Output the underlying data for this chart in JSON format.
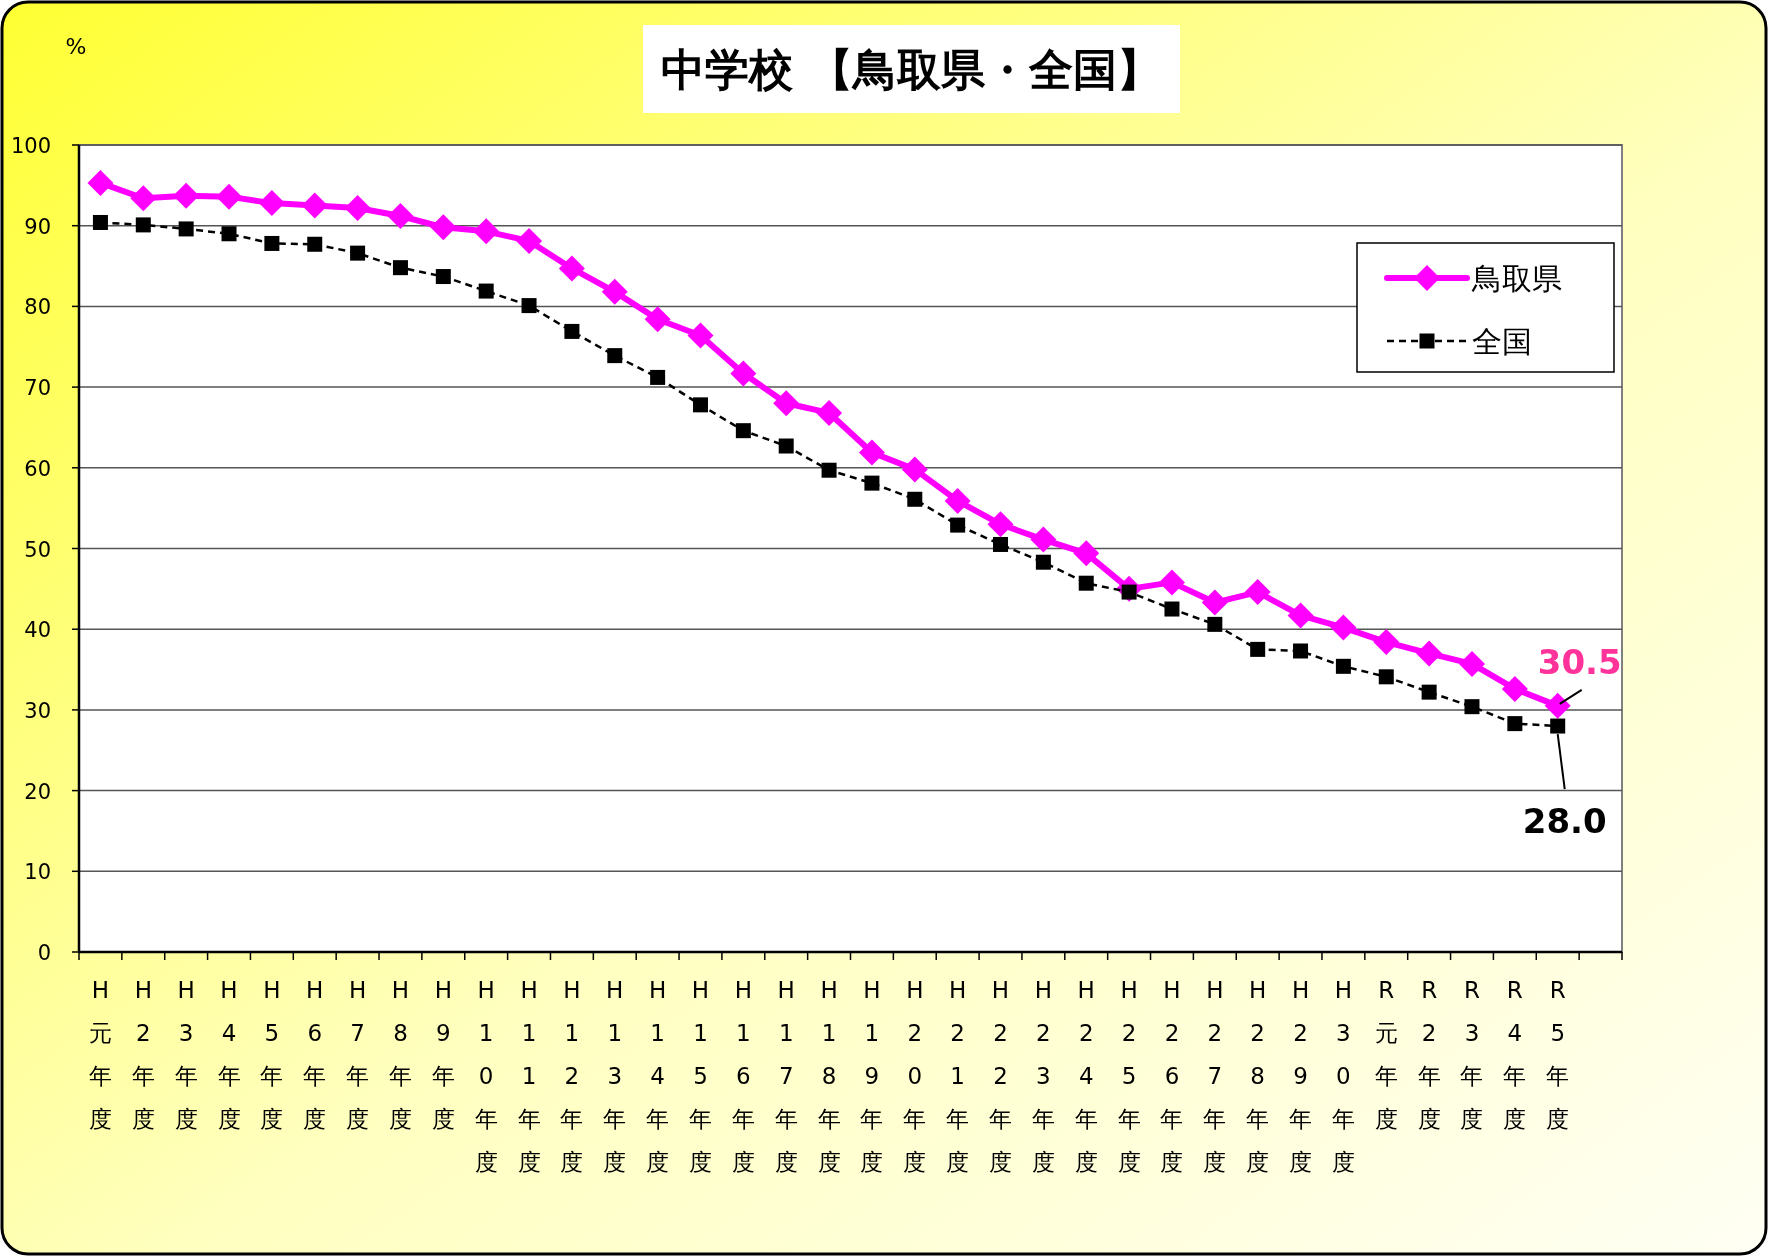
{
  "chart_data": {
    "type": "line",
    "title": "中学校 【鳥取県・全国】",
    "ylabel": "%",
    "categories": [
      "H元年度",
      "H2年度",
      "H3年度",
      "H4年度",
      "H5年度",
      "H6年度",
      "H7年度",
      "H8年度",
      "H9年度",
      "H10年度",
      "H11年度",
      "H12年度",
      "H13年度",
      "H14年度",
      "H15年度",
      "H16年度",
      "H17年度",
      "H18年度",
      "H19年度",
      "H20年度",
      "H21年度",
      "H22年度",
      "H23年度",
      "H24年度",
      "H25年度",
      "H26年度",
      "H27年度",
      "H28年度",
      "H29年度",
      "H30年度",
      "R元年度",
      "R2年度",
      "R3年度",
      "R4年度",
      "R5年度"
    ],
    "series": [
      {
        "name": "鳥取県",
        "color": "#ff00ff",
        "marker": "diamond",
        "line_style": "solid",
        "values": [
          95.3,
          93.4,
          93.7,
          93.6,
          92.8,
          92.5,
          92.2,
          91.2,
          89.8,
          89.3,
          88.1,
          84.7,
          81.8,
          78.4,
          76.4,
          71.7,
          68.0,
          66.8,
          61.9,
          59.8,
          55.9,
          53.0,
          51.1,
          49.4,
          45.0,
          45.8,
          43.3,
          44.6,
          41.7,
          40.2,
          38.4,
          37.0,
          35.7,
          32.6,
          30.5
        ]
      },
      {
        "name": "全国",
        "color": "#000000",
        "marker": "square",
        "line_style": "dashed",
        "values": [
          90.4,
          90.1,
          89.6,
          89.0,
          87.8,
          87.7,
          86.6,
          84.8,
          83.7,
          81.9,
          80.1,
          76.9,
          73.9,
          71.2,
          67.8,
          64.6,
          62.7,
          59.7,
          58.1,
          56.1,
          52.9,
          50.5,
          48.3,
          45.7,
          44.6,
          42.5,
          40.6,
          37.5,
          37.3,
          35.4,
          34.1,
          32.2,
          30.4,
          28.3,
          28.0
        ]
      }
    ],
    "ylim": [
      0,
      100
    ],
    "yticks": [
      0,
      10,
      20,
      30,
      40,
      50,
      60,
      70,
      80,
      90,
      100
    ],
    "grid": "y",
    "legend": "top right",
    "annotations": [
      {
        "text": "30.5",
        "x": "R5年度",
        "y": 30.5
      },
      {
        "text": "28.0",
        "x": "R5年度",
        "y": 28.0
      }
    ]
  }
}
